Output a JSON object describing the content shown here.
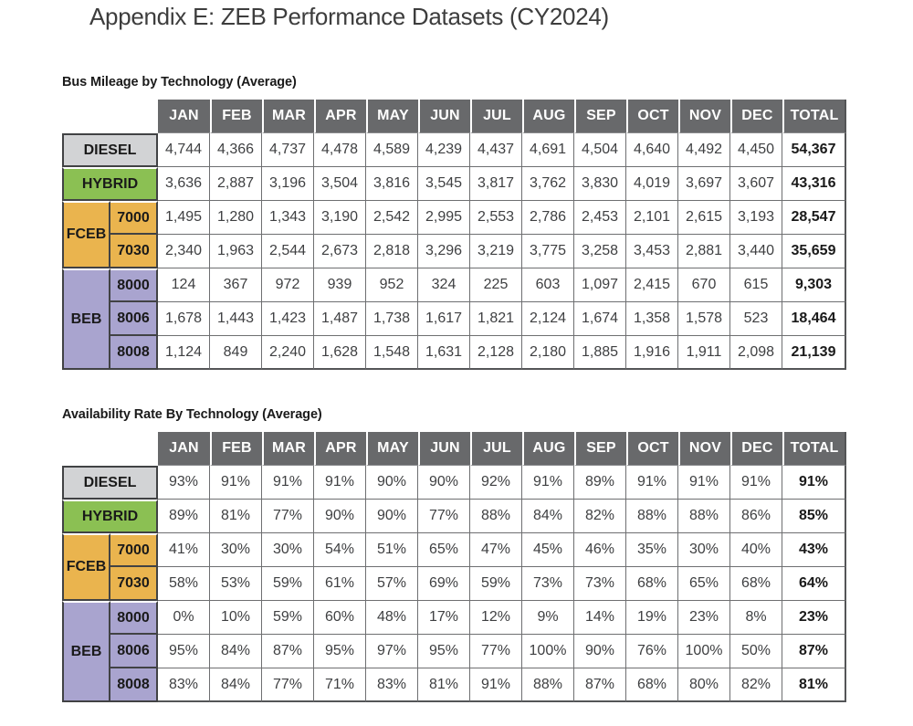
{
  "page": {
    "title": "Appendix E: ZEB Performance Datasets (CY2024)"
  },
  "columns": {
    "months": [
      "JAN",
      "FEB",
      "MAR",
      "APR",
      "MAY",
      "JUN",
      "JUL",
      "AUG",
      "SEP",
      "OCT",
      "NOV",
      "DEC"
    ],
    "total": "TOTAL"
  },
  "colors": {
    "header_bg": "#68696b",
    "header_text": "#ffffff",
    "diesel": "#d2d3d5",
    "hybrid": "#8bc053",
    "fceb": "#eab44e",
    "beb": "#a9a4cf",
    "border_dark": "#414244",
    "grid_line": "#6e6f71"
  },
  "tables": [
    {
      "title": "Bus Mileage by Technology (Average)",
      "rows": [
        {
          "group": "DIESEL",
          "sub": "",
          "color": "diesel",
          "values": [
            "4,744",
            "4,366",
            "4,737",
            "4,478",
            "4,589",
            "4,239",
            "4,437",
            "4,691",
            "4,504",
            "4,640",
            "4,492",
            "4,450"
          ],
          "total": "54,367"
        },
        {
          "group": "HYBRID",
          "sub": "",
          "color": "hybrid",
          "values": [
            "3,636",
            "2,887",
            "3,196",
            "3,504",
            "3,816",
            "3,545",
            "3,817",
            "3,762",
            "3,830",
            "4,019",
            "3,697",
            "3,607"
          ],
          "total": "43,316"
        },
        {
          "group": "FCEB",
          "sub": "7000",
          "color": "fceb",
          "values": [
            "1,495",
            "1,280",
            "1,343",
            "3,190",
            "2,542",
            "2,995",
            "2,553",
            "2,786",
            "2,453",
            "2,101",
            "2,615",
            "3,193"
          ],
          "total": "28,547"
        },
        {
          "group": "FCEB",
          "sub": "7030",
          "color": "fceb",
          "values": [
            "2,340",
            "1,963",
            "2,544",
            "2,673",
            "2,818",
            "3,296",
            "3,219",
            "3,775",
            "3,258",
            "3,453",
            "2,881",
            "3,440"
          ],
          "total": "35,659"
        },
        {
          "group": "BEB",
          "sub": "8000",
          "color": "beb",
          "values": [
            "124",
            "367",
            "972",
            "939",
            "952",
            "324",
            "225",
            "603",
            "1,097",
            "2,415",
            "670",
            "615"
          ],
          "total": "9,303"
        },
        {
          "group": "BEB",
          "sub": "8006",
          "color": "beb",
          "values": [
            "1,678",
            "1,443",
            "1,423",
            "1,487",
            "1,738",
            "1,617",
            "1,821",
            "2,124",
            "1,674",
            "1,358",
            "1,578",
            "523"
          ],
          "total": "18,464"
        },
        {
          "group": "BEB",
          "sub": "8008",
          "color": "beb",
          "values": [
            "1,124",
            "849",
            "2,240",
            "1,628",
            "1,548",
            "1,631",
            "2,128",
            "2,180",
            "1,885",
            "1,916",
            "1,911",
            "2,098"
          ],
          "total": "21,139"
        }
      ]
    },
    {
      "title": "Availability Rate By Technology (Average)",
      "rows": [
        {
          "group": "DIESEL",
          "sub": "",
          "color": "diesel",
          "values": [
            "93%",
            "91%",
            "91%",
            "91%",
            "90%",
            "90%",
            "92%",
            "91%",
            "89%",
            "91%",
            "91%",
            "91%"
          ],
          "total": "91%"
        },
        {
          "group": "HYBRID",
          "sub": "",
          "color": "hybrid",
          "values": [
            "89%",
            "81%",
            "77%",
            "90%",
            "90%",
            "77%",
            "88%",
            "84%",
            "82%",
            "88%",
            "88%",
            "86%"
          ],
          "total": "85%"
        },
        {
          "group": "FCEB",
          "sub": "7000",
          "color": "fceb",
          "values": [
            "41%",
            "30%",
            "30%",
            "54%",
            "51%",
            "65%",
            "47%",
            "45%",
            "46%",
            "35%",
            "30%",
            "40%"
          ],
          "total": "43%"
        },
        {
          "group": "FCEB",
          "sub": "7030",
          "color": "fceb",
          "values": [
            "58%",
            "53%",
            "59%",
            "61%",
            "57%",
            "69%",
            "59%",
            "73%",
            "73%",
            "68%",
            "65%",
            "68%"
          ],
          "total": "64%"
        },
        {
          "group": "BEB",
          "sub": "8000",
          "color": "beb",
          "values": [
            "0%",
            "10%",
            "59%",
            "60%",
            "48%",
            "17%",
            "12%",
            "9%",
            "14%",
            "19%",
            "23%",
            "8%"
          ],
          "total": "23%"
        },
        {
          "group": "BEB",
          "sub": "8006",
          "color": "beb",
          "values": [
            "95%",
            "84%",
            "87%",
            "95%",
            "97%",
            "95%",
            "77%",
            "100%",
            "90%",
            "76%",
            "100%",
            "50%"
          ],
          "total": "87%"
        },
        {
          "group": "BEB",
          "sub": "8008",
          "color": "beb",
          "values": [
            "83%",
            "84%",
            "77%",
            "71%",
            "83%",
            "81%",
            "91%",
            "88%",
            "87%",
            "68%",
            "80%",
            "82%"
          ],
          "total": "81%"
        }
      ]
    }
  ]
}
